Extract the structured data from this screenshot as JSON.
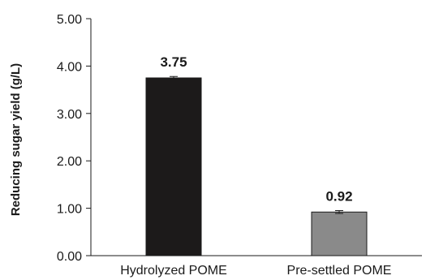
{
  "chart_data": {
    "type": "bar",
    "title": "",
    "xlabel": "",
    "ylabel": "Reducing sugar yield (g/L)",
    "categories": [
      "Hydrolyzed POME",
      "Pre-settled POME"
    ],
    "values": [
      3.75,
      0.92
    ],
    "error": [
      0.03,
      0.03
    ],
    "data_labels": [
      "3.75",
      "0.92"
    ],
    "bar_colors": [
      "#1c1a1a",
      "#8a8a8a"
    ],
    "ylim": [
      0,
      5
    ],
    "yticks": [
      0,
      1,
      2,
      3,
      4,
      5
    ],
    "ytick_labels": [
      "0.00",
      "1.00",
      "2.00",
      "3.00",
      "4.00",
      "5.00"
    ],
    "grid": false,
    "legend": "none"
  }
}
